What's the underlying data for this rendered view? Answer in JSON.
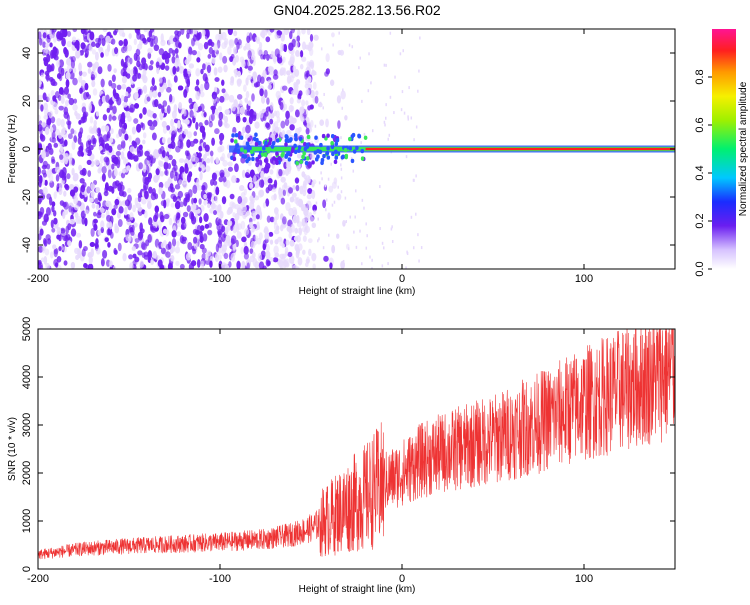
{
  "figure": {
    "title": "GN04.2025.282.13.56.R02"
  },
  "colors": {
    "snr_line": "#ee3333",
    "ridge_hot": "#ff1f1f",
    "ridge_warm": "#39e85a",
    "ridge_cool": "#2a55ff",
    "noise_dark": "#6f1df0",
    "noise_light": "#e7dafc"
  },
  "chart_data": [
    {
      "type": "heatmap",
      "xlabel": "Height of straight line (km)",
      "ylabel": "Frequency (Hz)",
      "xlim": [
        -200,
        150
      ],
      "ylim": [
        -50,
        50
      ],
      "x_ticks": [
        -200,
        -100,
        0,
        100
      ],
      "y_ticks": [
        -40,
        -20,
        0,
        20,
        40
      ],
      "grid": false,
      "description": "Broadband noise for heights below ~-50 km; narrow ridge at 0 Hz from ~-95 km rising to full amplitude above ~-20 km",
      "ridge": {
        "frequency_hz": 0,
        "start_km": -95,
        "saturation_start_km": -20
      },
      "noise_region_km": [
        -200,
        -48
      ],
      "colorbar": {
        "label": "Normalized spectral amplitude",
        "range": [
          0.0,
          1.0
        ],
        "ticks": [
          "0.0",
          "0.2",
          "0.4",
          "0.6",
          "0.8"
        ]
      }
    },
    {
      "type": "line",
      "xlabel": "Height of straight line (km)",
      "ylabel": "SNR (10 * v/v)",
      "xlim": [
        -200,
        150
      ],
      "ylim": [
        0,
        5000
      ],
      "x_ticks": [
        -200,
        -100,
        0,
        100
      ],
      "y_ticks": [
        0,
        1000,
        2000,
        3000,
        4000,
        5000
      ],
      "grid": false,
      "series": [
        {
          "x": [
            -200,
            -175,
            -150,
            -125,
            -100,
            -75,
            -60,
            -50,
            -40,
            -30,
            -20,
            -10,
            0,
            10,
            25,
            50,
            75,
            100,
            125,
            150
          ],
          "y": [
            300,
            420,
            480,
            520,
            560,
            620,
            720,
            850,
            1050,
            1300,
            1500,
            1800,
            2000,
            2250,
            2450,
            2700,
            3050,
            3450,
            3800,
            4150
          ]
        }
      ]
    }
  ]
}
